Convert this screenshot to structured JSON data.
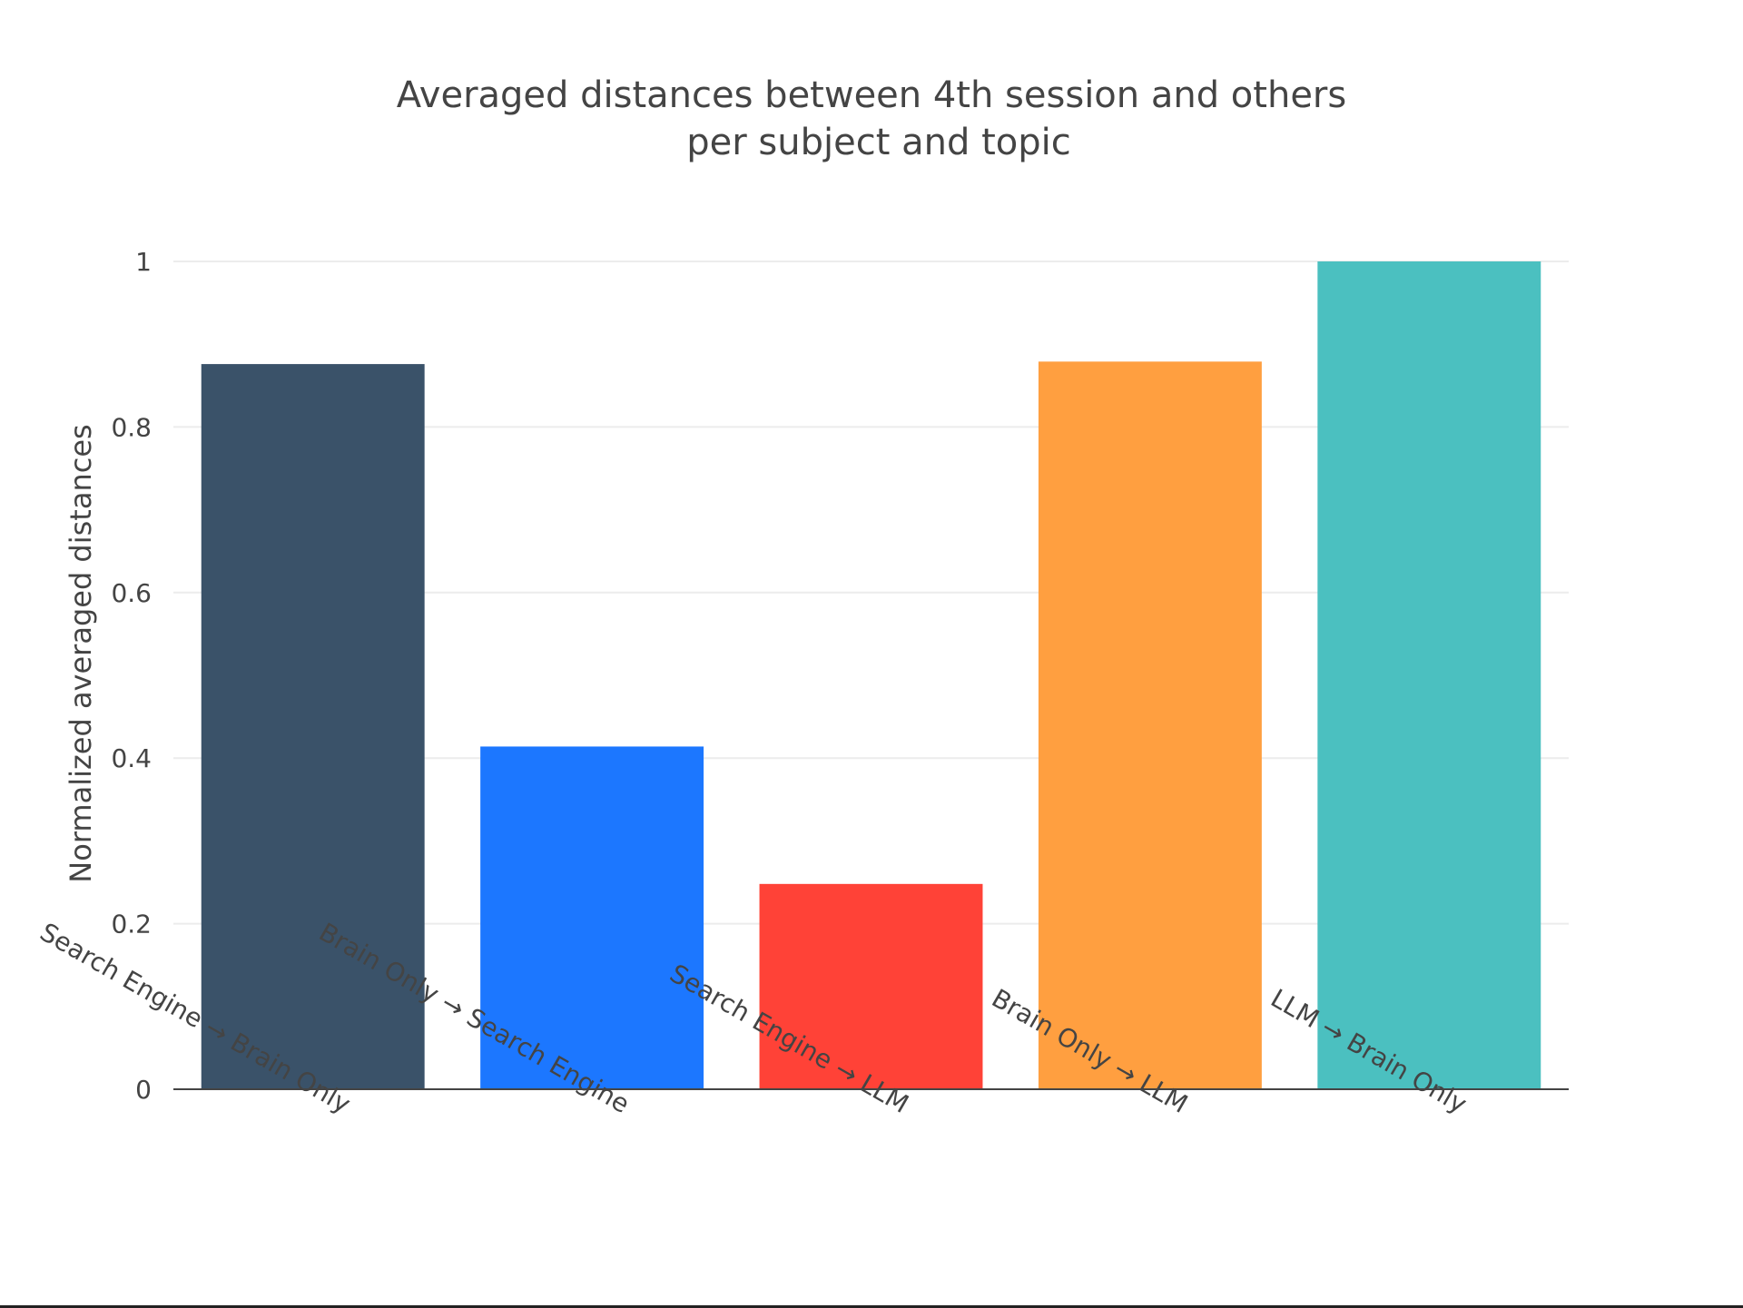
{
  "chart_data": {
    "type": "bar",
    "title_lines": [
      "Averaged distances between 4th session and others",
      "per subject and topic"
    ],
    "xlabel": "",
    "ylabel": "Normalized averaged distances",
    "categories": [
      "Search Engine → Brain Only",
      "Brain Only → Search Engine",
      "Search Engine → LLM",
      "Brain Only → LLM",
      "LLM → Brain Only"
    ],
    "values": [
      0.876,
      0.414,
      0.248,
      0.879,
      1.0
    ],
    "colors": [
      "#3A5269",
      "#1C77FF",
      "#FF4237",
      "#FF9F40",
      "#4BC0C0"
    ],
    "ylim": [
      0,
      1
    ],
    "yticks": [
      0,
      0.2,
      0.4,
      0.6,
      0.8,
      1
    ],
    "ytick_labels": [
      "0",
      "0.2",
      "0.4",
      "0.6",
      "0.8",
      "1"
    ],
    "grid": true,
    "legend": "none"
  }
}
